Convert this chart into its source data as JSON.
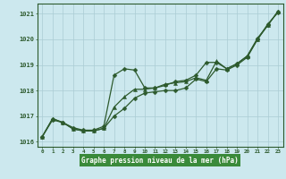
{
  "title": "Graphe pression niveau de la mer (hPa)",
  "hours": [
    0,
    1,
    2,
    3,
    4,
    5,
    6,
    7,
    8,
    9,
    10,
    11,
    12,
    13,
    14,
    15,
    16,
    17,
    18,
    19,
    20,
    21,
    22,
    23
  ],
  "line_upper": [
    1016.2,
    1016.9,
    1016.75,
    1016.55,
    1016.45,
    1016.45,
    1016.6,
    1018.6,
    1018.85,
    1018.8,
    1018.1,
    1018.1,
    1018.2,
    1018.35,
    1018.4,
    1018.6,
    1019.1,
    1019.1,
    1018.85,
    1019.05,
    1019.35,
    1020.05,
    1020.55,
    1021.1
  ],
  "line_mid": [
    1016.2,
    1016.9,
    1016.75,
    1016.5,
    1016.42,
    1016.42,
    1016.52,
    1017.35,
    1017.75,
    1018.05,
    1018.05,
    1018.1,
    1018.25,
    1018.3,
    1018.35,
    1018.5,
    1018.4,
    1019.15,
    1018.85,
    1019.05,
    1019.35,
    1020.0,
    1020.55,
    1021.1
  ],
  "line_lower": [
    1016.2,
    1016.85,
    1016.75,
    1016.5,
    1016.42,
    1016.42,
    1016.52,
    1017.0,
    1017.3,
    1017.7,
    1017.9,
    1017.95,
    1018.0,
    1018.0,
    1018.1,
    1018.45,
    1018.35,
    1018.85,
    1018.8,
    1019.0,
    1019.3,
    1020.0,
    1020.6,
    1021.05
  ],
  "ylim": [
    1015.8,
    1021.4
  ],
  "yticks": [
    1016,
    1017,
    1018,
    1019,
    1020,
    1021
  ],
  "bg_color": "#cce8ee",
  "line_color": "#2d5a2d",
  "grid_color": "#aaccd4",
  "title_color": "#ffffff",
  "title_bg": "#3a8a3a",
  "marker_size": 2.5,
  "line_width": 0.9
}
